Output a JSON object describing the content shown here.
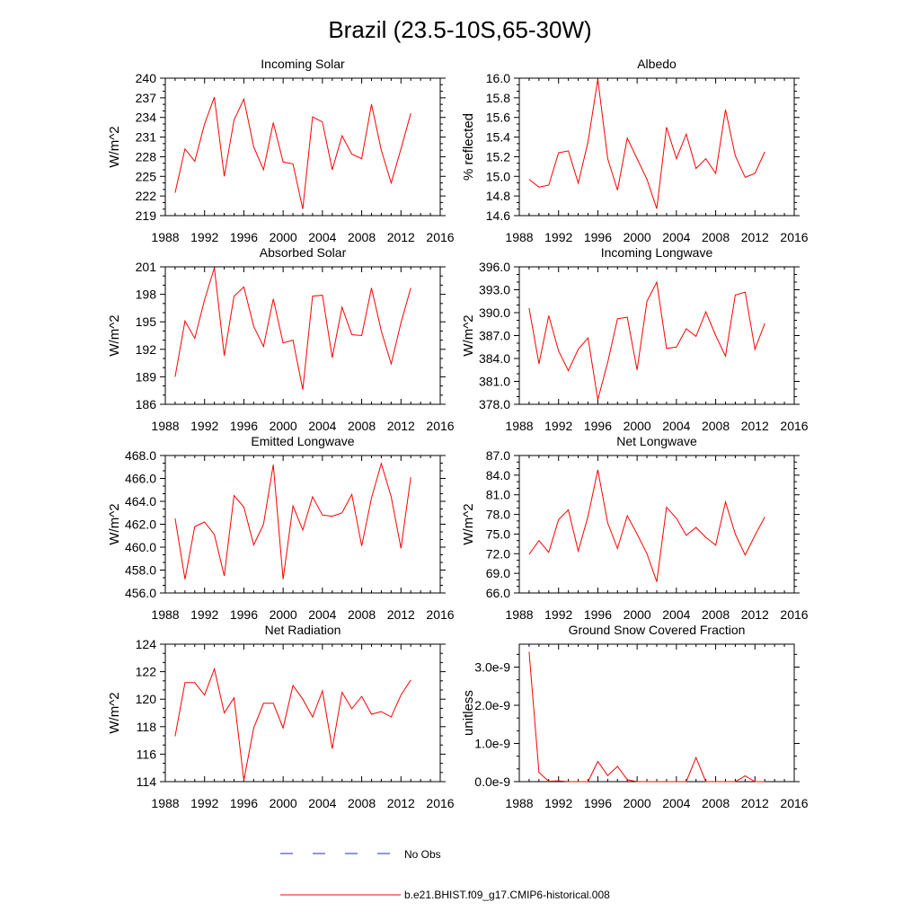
{
  "page_title": "Brazil (23.5-10S,65-30W)",
  "legend": {
    "obs_label": "No Obs",
    "model_label": "b.e21.BHIST.f09_g17.CMIP6-historical.008",
    "obs_color": "#1f2fb0",
    "model_color": "#ff0000"
  },
  "chart_data": [
    {
      "type": "line",
      "title": "Incoming Solar",
      "ylabel": "W/m^2",
      "xlabel": "",
      "xlim": [
        1988,
        2016
      ],
      "xticks": [
        1988,
        1992,
        1996,
        2000,
        2004,
        2008,
        2012,
        2016
      ],
      "ylim": [
        219,
        240
      ],
      "yticks": [
        219,
        222,
        225,
        228,
        231,
        234,
        237,
        240
      ],
      "ytick_labels": [
        "219",
        "222",
        "225",
        "228",
        "231",
        "234",
        "237",
        "240"
      ],
      "series": [
        {
          "name": "b.e21.BHIST.f09_g17.CMIP6-historical.008",
          "x": [
            1989,
            1990,
            1991,
            1992,
            1993,
            1994,
            1995,
            1996,
            1997,
            1998,
            1999,
            2000,
            2001,
            2002,
            2003,
            2004,
            2005,
            2006,
            2007,
            2008,
            2009,
            2010,
            2011,
            2012,
            2013
          ],
          "values": [
            222.5,
            229.2,
            227.3,
            233.0,
            237.1,
            225.0,
            233.6,
            236.8,
            229.5,
            226.0,
            233.2,
            227.2,
            226.9,
            220.0,
            234.1,
            233.3,
            226.0,
            231.2,
            228.4,
            227.7,
            236.0,
            229.0,
            224.0,
            229.2,
            234.6
          ]
        }
      ]
    },
    {
      "type": "line",
      "title": "Albedo",
      "ylabel": "% reflected",
      "xlabel": "",
      "xlim": [
        1988,
        2016
      ],
      "xticks": [
        1988,
        1992,
        1996,
        2000,
        2004,
        2008,
        2012,
        2016
      ],
      "ylim": [
        14.6,
        16.0
      ],
      "yticks": [
        14.6,
        14.8,
        15.0,
        15.2,
        15.4,
        15.6,
        15.8,
        16.0
      ],
      "ytick_labels": [
        "14.6",
        "14.8",
        "15.0",
        "15.2",
        "15.4",
        "15.6",
        "15.8",
        "16.0"
      ],
      "series": [
        {
          "name": "b.e21.BHIST.f09_g17.CMIP6-historical.008",
          "x": [
            1989,
            1990,
            1991,
            1992,
            1993,
            1994,
            1995,
            1996,
            1997,
            1998,
            1999,
            2000,
            2001,
            2002,
            2003,
            2004,
            2005,
            2006,
            2007,
            2008,
            2009,
            2010,
            2011,
            2012,
            2013
          ],
          "values": [
            14.97,
            14.89,
            14.91,
            15.24,
            15.26,
            14.93,
            15.35,
            15.99,
            15.18,
            14.86,
            15.39,
            15.18,
            14.97,
            14.67,
            15.5,
            15.18,
            15.43,
            15.08,
            15.18,
            15.03,
            15.68,
            15.21,
            14.99,
            15.03,
            15.25
          ]
        }
      ]
    },
    {
      "type": "line",
      "title": "Absorbed Solar",
      "ylabel": "W/m^2",
      "xlabel": "",
      "xlim": [
        1988,
        2016
      ],
      "xticks": [
        1988,
        1992,
        1996,
        2000,
        2004,
        2008,
        2012,
        2016
      ],
      "ylim": [
        186,
        201
      ],
      "yticks": [
        186,
        189,
        192,
        195,
        198,
        201
      ],
      "ytick_labels": [
        "186",
        "189",
        "192",
        "195",
        "198",
        "201"
      ],
      "series": [
        {
          "name": "b.e21.BHIST.f09_g17.CMIP6-historical.008",
          "x": [
            1989,
            1990,
            1991,
            1992,
            1993,
            1994,
            1995,
            1996,
            1997,
            1998,
            1999,
            2000,
            2001,
            2002,
            2003,
            2004,
            2005,
            2006,
            2007,
            2008,
            2009,
            2010,
            2011,
            2012,
            2013
          ],
          "values": [
            189.0,
            195.1,
            193.2,
            197.4,
            200.9,
            191.3,
            197.8,
            198.8,
            194.5,
            192.3,
            197.5,
            192.7,
            193.0,
            187.6,
            197.8,
            197.9,
            191.1,
            196.6,
            193.6,
            193.5,
            198.7,
            194.0,
            190.4,
            194.9,
            198.7
          ]
        }
      ]
    },
    {
      "type": "line",
      "title": "Incoming Longwave",
      "ylabel": "W/m^2",
      "xlabel": "",
      "xlim": [
        1988,
        2016
      ],
      "xticks": [
        1988,
        1992,
        1996,
        2000,
        2004,
        2008,
        2012,
        2016
      ],
      "ylim": [
        378,
        396
      ],
      "yticks": [
        378,
        381,
        384,
        387,
        390,
        393,
        396
      ],
      "ytick_labels": [
        "378.0",
        "381.0",
        "384.0",
        "387.0",
        "390.0",
        "393.0",
        "396.0"
      ],
      "series": [
        {
          "name": "b.e21.BHIST.f09_g17.CMIP6-historical.008",
          "x": [
            1989,
            1990,
            1991,
            1992,
            1993,
            1994,
            1995,
            1996,
            1997,
            1998,
            1999,
            2000,
            2001,
            2002,
            2003,
            2004,
            2005,
            2006,
            2007,
            2008,
            2009,
            2010,
            2011,
            2012,
            2013
          ],
          "values": [
            390.6,
            383.3,
            389.6,
            385.0,
            382.4,
            385.2,
            386.7,
            378.6,
            383.5,
            389.2,
            389.4,
            382.5,
            391.5,
            394.0,
            385.3,
            385.5,
            387.9,
            386.9,
            390.1,
            387.0,
            384.3,
            392.3,
            392.7,
            385.2,
            388.6
          ]
        }
      ]
    },
    {
      "type": "line",
      "title": "Emitted Longwave",
      "ylabel": "W/m^2",
      "xlabel": "",
      "xlim": [
        1988,
        2016
      ],
      "xticks": [
        1988,
        1992,
        1996,
        2000,
        2004,
        2008,
        2012,
        2016
      ],
      "ylim": [
        456,
        468
      ],
      "yticks": [
        456,
        458,
        460,
        462,
        464,
        466,
        468
      ],
      "ytick_labels": [
        "456.0",
        "458.0",
        "460.0",
        "462.0",
        "464.0",
        "466.0",
        "468.0"
      ],
      "series": [
        {
          "name": "b.e21.BHIST.f09_g17.CMIP6-historical.008",
          "x": [
            1989,
            1990,
            1991,
            1992,
            1993,
            1994,
            1995,
            1996,
            1997,
            1998,
            1999,
            2000,
            2001,
            2002,
            2003,
            2004,
            2005,
            2006,
            2007,
            2008,
            2009,
            2010,
            2011,
            2012,
            2013
          ],
          "values": [
            462.5,
            457.2,
            461.8,
            462.2,
            461.1,
            457.5,
            464.5,
            463.5,
            460.2,
            462.0,
            467.2,
            457.2,
            463.6,
            461.5,
            464.4,
            462.8,
            462.7,
            463.0,
            464.6,
            460.1,
            464.3,
            467.3,
            464.4,
            459.9,
            466.1
          ]
        }
      ]
    },
    {
      "type": "line",
      "title": "Net Longwave",
      "ylabel": "W/m^2",
      "xlabel": "",
      "xlim": [
        1988,
        2016
      ],
      "xticks": [
        1988,
        1992,
        1996,
        2000,
        2004,
        2008,
        2012,
        2016
      ],
      "ylim": [
        66,
        87
      ],
      "yticks": [
        66,
        69,
        72,
        75,
        78,
        81,
        84,
        87
      ],
      "ytick_labels": [
        "66.0",
        "69.0",
        "72.0",
        "75.0",
        "78.0",
        "81.0",
        "84.0",
        "87.0"
      ],
      "series": [
        {
          "name": "b.e21.BHIST.f09_g17.CMIP6-historical.008",
          "x": [
            1989,
            1990,
            1991,
            1992,
            1993,
            1994,
            1995,
            1996,
            1997,
            1998,
            1999,
            2000,
            2001,
            2002,
            2003,
            2004,
            2005,
            2006,
            2007,
            2008,
            2009,
            2010,
            2011,
            2012,
            2013
          ],
          "values": [
            71.9,
            74.0,
            72.2,
            77.2,
            78.7,
            72.4,
            77.7,
            84.8,
            76.7,
            72.8,
            77.8,
            75.0,
            72.0,
            67.7,
            79.1,
            77.4,
            74.8,
            76.0,
            74.5,
            73.3,
            79.9,
            75.0,
            71.8,
            74.8,
            77.6
          ]
        }
      ]
    },
    {
      "type": "line",
      "title": "Net Radiation",
      "ylabel": "W/m^2",
      "xlabel": "",
      "xlim": [
        1988,
        2016
      ],
      "xticks": [
        1988,
        1992,
        1996,
        2000,
        2004,
        2008,
        2012,
        2016
      ],
      "ylim": [
        114,
        124
      ],
      "yticks": [
        114,
        116,
        118,
        120,
        122,
        124
      ],
      "ytick_labels": [
        "114",
        "116",
        "118",
        "120",
        "122",
        "124"
      ],
      "series": [
        {
          "name": "b.e21.BHIST.f09_g17.CMIP6-historical.008",
          "x": [
            1989,
            1990,
            1991,
            1992,
            1993,
            1994,
            1995,
            1996,
            1997,
            1998,
            1999,
            2000,
            2001,
            2002,
            2003,
            2004,
            2005,
            2006,
            2007,
            2008,
            2009,
            2010,
            2011,
            2012,
            2013
          ],
          "values": [
            117.3,
            121.2,
            121.2,
            120.3,
            122.2,
            119.0,
            120.1,
            114.1,
            117.9,
            119.7,
            119.7,
            117.9,
            121.0,
            120.0,
            118.7,
            120.6,
            116.4,
            120.5,
            119.3,
            120.2,
            118.9,
            119.1,
            118.7,
            120.3,
            121.4
          ]
        }
      ]
    },
    {
      "type": "line",
      "title": "Ground Snow Covered Fraction",
      "ylabel": "unitless",
      "xlabel": "",
      "xlim": [
        1988,
        2016
      ],
      "xticks": [
        1988,
        1992,
        1996,
        2000,
        2004,
        2008,
        2012,
        2016
      ],
      "ylim": [
        0,
        3.6e-09
      ],
      "yticks": [
        0,
        1e-09,
        2e-09,
        3e-09
      ],
      "ytick_labels": [
        "0.0e-9",
        "1.0e-9",
        "2.0e-9",
        "3.0e-9"
      ],
      "series": [
        {
          "name": "b.e21.BHIST.f09_g17.CMIP6-historical.008",
          "x": [
            1989,
            1990,
            1991,
            1992,
            1993,
            1994,
            1995,
            1996,
            1997,
            1998,
            1999,
            2000,
            2001,
            2002,
            2003,
            2004,
            2005,
            2006,
            2007,
            2008,
            2009,
            2010,
            2011,
            2012,
            2013
          ],
          "values": [
            3.4e-09,
            2.4e-10,
            1e-11,
            2e-11,
            0,
            0,
            0,
            5.3e-10,
            1.6e-10,
            4e-10,
            5e-11,
            0,
            0,
            0,
            0,
            0,
            0,
            6.3e-10,
            0,
            0,
            0,
            0,
            1.5e-10,
            0,
            0
          ]
        }
      ]
    }
  ]
}
